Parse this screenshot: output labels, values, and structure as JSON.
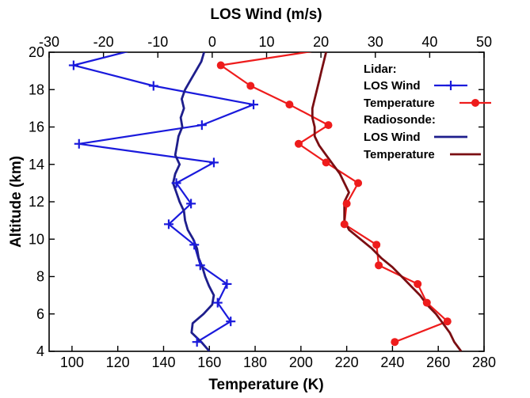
{
  "chart_data": {
    "type": "line",
    "title": "",
    "top_xlabel": "LOS Wind (m/s)",
    "xlabel": "Temperature (K)",
    "ylabel": "Altitude (km)",
    "bottom_x_lim": [
      90,
      280
    ],
    "bottom_x_ticks": [
      100,
      120,
      140,
      160,
      180,
      200,
      220,
      240,
      260,
      280
    ],
    "top_x_lim": [
      -30,
      50
    ],
    "top_x_ticks": [
      -30,
      -20,
      -10,
      0,
      10,
      20,
      30,
      40,
      50
    ],
    "ylim": [
      4,
      20
    ],
    "y_ticks": [
      4,
      6,
      8,
      10,
      12,
      14,
      16,
      18,
      20
    ],
    "grid": false,
    "legend_position": "top-right",
    "legend": {
      "groups": [
        {
          "heading": "Lidar:",
          "entries": [
            {
              "label": "LOS Wind",
              "series": "lidar_los_wind"
            },
            {
              "label": "Temperature",
              "series": "lidar_temperature"
            }
          ]
        },
        {
          "heading": "Radiosonde:",
          "entries": [
            {
              "label": "LOS Wind",
              "series": "radiosonde_los_wind"
            },
            {
              "label": "Temperature",
              "series": "radiosonde_temperature"
            }
          ]
        }
      ]
    },
    "series": [
      {
        "id": "lidar_los_wind",
        "name": "LOS Wind",
        "axis": "top",
        "color": "#1a1adc",
        "marker": "plus",
        "points": [
          {
            "x": -12,
            "y": 20.3
          },
          {
            "x": -25.5,
            "y": 19.3
          },
          {
            "x": -10.8,
            "y": 18.2
          },
          {
            "x": 7.6,
            "y": 17.2
          },
          {
            "x": -1.9,
            "y": 16.1
          },
          {
            "x": -24.5,
            "y": 15.1
          },
          {
            "x": 0.3,
            "y": 14.1
          },
          {
            "x": -6.6,
            "y": 13.0
          },
          {
            "x": -3.9,
            "y": 11.9
          },
          {
            "x": -8.0,
            "y": 10.8
          },
          {
            "x": -3.3,
            "y": 9.7
          },
          {
            "x": -2.2,
            "y": 8.6
          },
          {
            "x": 2.7,
            "y": 7.6
          },
          {
            "x": 1.0,
            "y": 6.6
          },
          {
            "x": 3.4,
            "y": 5.6
          },
          {
            "x": -2.8,
            "y": 4.5
          }
        ]
      },
      {
        "id": "lidar_temperature",
        "name": "Temperature",
        "axis": "bottom",
        "color": "#ee1c1c",
        "marker": "circle",
        "points": [
          {
            "x": 213,
            "y": 20.2
          },
          {
            "x": 165,
            "y": 19.3
          },
          {
            "x": 178,
            "y": 18.2
          },
          {
            "x": 195,
            "y": 17.2
          },
          {
            "x": 212,
            "y": 16.1
          },
          {
            "x": 199,
            "y": 15.1
          },
          {
            "x": 211,
            "y": 14.1
          },
          {
            "x": 225,
            "y": 13.0
          },
          {
            "x": 220,
            "y": 11.9
          },
          {
            "x": 219,
            "y": 10.8
          },
          {
            "x": 233,
            "y": 9.7
          },
          {
            "x": 234,
            "y": 8.6
          },
          {
            "x": 251,
            "y": 7.6
          },
          {
            "x": 255,
            "y": 6.6
          },
          {
            "x": 264,
            "y": 5.6
          },
          {
            "x": 241,
            "y": 4.5
          }
        ]
      },
      {
        "id": "radiosonde_los_wind",
        "name": "LOS Wind",
        "axis": "top",
        "color": "#1e1e8c",
        "marker": "none",
        "points": [
          {
            "x": -1.5,
            "y": 20.0
          },
          {
            "x": -2.0,
            "y": 19.5
          },
          {
            "x": -3.0,
            "y": 19.0
          },
          {
            "x": -4.0,
            "y": 18.5
          },
          {
            "x": -5.0,
            "y": 18.0
          },
          {
            "x": -5.6,
            "y": 17.5
          },
          {
            "x": -5.2,
            "y": 17.0
          },
          {
            "x": -5.8,
            "y": 16.5
          },
          {
            "x": -5.5,
            "y": 16.0
          },
          {
            "x": -6.2,
            "y": 15.5
          },
          {
            "x": -6.5,
            "y": 15.0
          },
          {
            "x": -6.8,
            "y": 14.5
          },
          {
            "x": -6.0,
            "y": 14.0
          },
          {
            "x": -6.8,
            "y": 13.5
          },
          {
            "x": -7.2,
            "y": 13.0
          },
          {
            "x": -6.6,
            "y": 12.5
          },
          {
            "x": -6.0,
            "y": 12.0
          },
          {
            "x": -5.2,
            "y": 11.5
          },
          {
            "x": -5.0,
            "y": 11.0
          },
          {
            "x": -4.5,
            "y": 10.5
          },
          {
            "x": -3.5,
            "y": 10.0
          },
          {
            "x": -2.8,
            "y": 9.5
          },
          {
            "x": -2.5,
            "y": 9.0
          },
          {
            "x": -1.8,
            "y": 8.5
          },
          {
            "x": -1.3,
            "y": 8.0
          },
          {
            "x": -0.6,
            "y": 7.5
          },
          {
            "x": 0.3,
            "y": 7.0
          },
          {
            "x": 0.0,
            "y": 6.5
          },
          {
            "x": -1.6,
            "y": 6.0
          },
          {
            "x": -3.6,
            "y": 5.5
          },
          {
            "x": -3.8,
            "y": 5.0
          },
          {
            "x": -2.0,
            "y": 4.5
          },
          {
            "x": -0.5,
            "y": 4.0
          }
        ]
      },
      {
        "id": "radiosonde_temperature",
        "name": "Temperature",
        "axis": "bottom",
        "color": "#7a0e12",
        "marker": "none",
        "points": [
          {
            "x": 211,
            "y": 20.0
          },
          {
            "x": 210,
            "y": 19.5
          },
          {
            "x": 209,
            "y": 19.0
          },
          {
            "x": 208,
            "y": 18.5
          },
          {
            "x": 207,
            "y": 18.0
          },
          {
            "x": 206,
            "y": 17.5
          },
          {
            "x": 205,
            "y": 17.0
          },
          {
            "x": 205,
            "y": 16.5
          },
          {
            "x": 206,
            "y": 16.0
          },
          {
            "x": 206,
            "y": 15.5
          },
          {
            "x": 208,
            "y": 15.0
          },
          {
            "x": 211,
            "y": 14.5
          },
          {
            "x": 214,
            "y": 14.0
          },
          {
            "x": 217,
            "y": 13.5
          },
          {
            "x": 219,
            "y": 13.0
          },
          {
            "x": 221,
            "y": 12.5
          },
          {
            "x": 219,
            "y": 12.0
          },
          {
            "x": 219,
            "y": 11.0
          },
          {
            "x": 221,
            "y": 10.5
          },
          {
            "x": 226,
            "y": 10.0
          },
          {
            "x": 231,
            "y": 9.5
          },
          {
            "x": 235,
            "y": 9.0
          },
          {
            "x": 240,
            "y": 8.5
          },
          {
            "x": 244,
            "y": 8.0
          },
          {
            "x": 248,
            "y": 7.5
          },
          {
            "x": 252,
            "y": 7.0
          },
          {
            "x": 255,
            "y": 6.5
          },
          {
            "x": 259,
            "y": 6.0
          },
          {
            "x": 262,
            "y": 5.5
          },
          {
            "x": 265,
            "y": 5.0
          },
          {
            "x": 267,
            "y": 4.5
          },
          {
            "x": 270,
            "y": 4.0
          }
        ]
      }
    ]
  }
}
